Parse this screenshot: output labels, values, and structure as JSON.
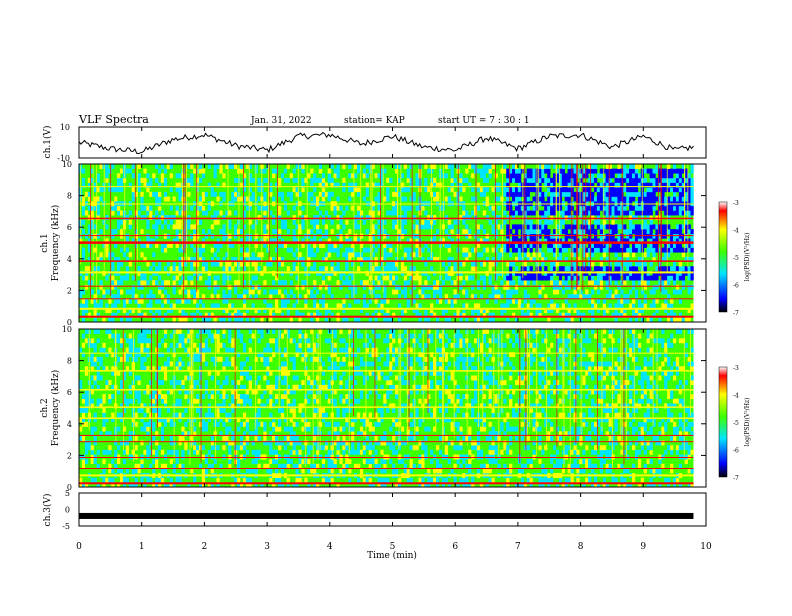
{
  "header": {
    "title": "VLF Spectra",
    "date": "Jan. 31, 2022",
    "station": "station= KAP",
    "start": "start UT = 7 : 30 : 1"
  },
  "chart_data": [
    {
      "type": "line",
      "panel": "ch1-waveform",
      "ylabel": "ch.1(V)",
      "ylim": [
        -10,
        10
      ],
      "ytick_labels": [
        "10",
        "-10"
      ],
      "xlim": [
        0,
        10
      ],
      "description_series": "oscillating waveform, values roughly between -8 and 6",
      "x": [
        0,
        0.5,
        1.0,
        1.5,
        2.0,
        2.5,
        3.0,
        3.5,
        4.0,
        4.5,
        5.0,
        5.5,
        6.0,
        6.5,
        7.0,
        7.5,
        8.0,
        8.5,
        9.0,
        9.5,
        9.8
      ],
      "y": [
        0,
        -4,
        -6,
        2,
        5,
        -2,
        -5,
        4,
        5,
        -1,
        4,
        -3,
        -5,
        3,
        -4,
        4,
        5,
        -3,
        4,
        -5,
        -3
      ]
    },
    {
      "type": "heatmap",
      "panel": "ch1-spectrogram",
      "ylabel": "ch.1\nFrequency (kHz)",
      "ylim": [
        0,
        10
      ],
      "yticks": [
        0,
        2,
        4,
        6,
        8,
        10
      ],
      "xlim": [
        0,
        10
      ],
      "colorbar": {
        "label": "log(PSD)(V²/Hz)",
        "range": [
          -7,
          -3
        ],
        "ticks": [
          -3,
          -4,
          -5,
          -6,
          -7
        ]
      }
    },
    {
      "type": "heatmap",
      "panel": "ch2-spectrogram",
      "ylabel": "ch.2\nFrequency (kHz)",
      "ylim": [
        0,
        10
      ],
      "yticks": [
        0,
        2,
        4,
        6,
        8,
        10
      ],
      "xlim": [
        0,
        10
      ],
      "colorbar": {
        "label": "log(PSD)(V²/Hz)",
        "range": [
          -7,
          -3
        ],
        "ticks": [
          -3,
          -4,
          -5,
          -6,
          -7
        ]
      }
    },
    {
      "type": "line",
      "panel": "ch3-waveform",
      "ylabel": "ch.3(V)",
      "ylim": [
        -5,
        5
      ],
      "yticks": [
        5,
        0,
        -5
      ],
      "xlim": [
        0,
        10
      ],
      "x": [
        0,
        9.8
      ],
      "y": [
        -1.5,
        -1.5
      ]
    }
  ],
  "xaxis": {
    "label": "Time (min)",
    "ticks": [
      0,
      1,
      2,
      3,
      4,
      5,
      6,
      7,
      8,
      9,
      10
    ]
  },
  "colors": {
    "blue": "#0000ff",
    "cyan": "#00e5ff",
    "green": "#3cff00",
    "yellow": "#ffff00",
    "red": "#ff0000"
  }
}
